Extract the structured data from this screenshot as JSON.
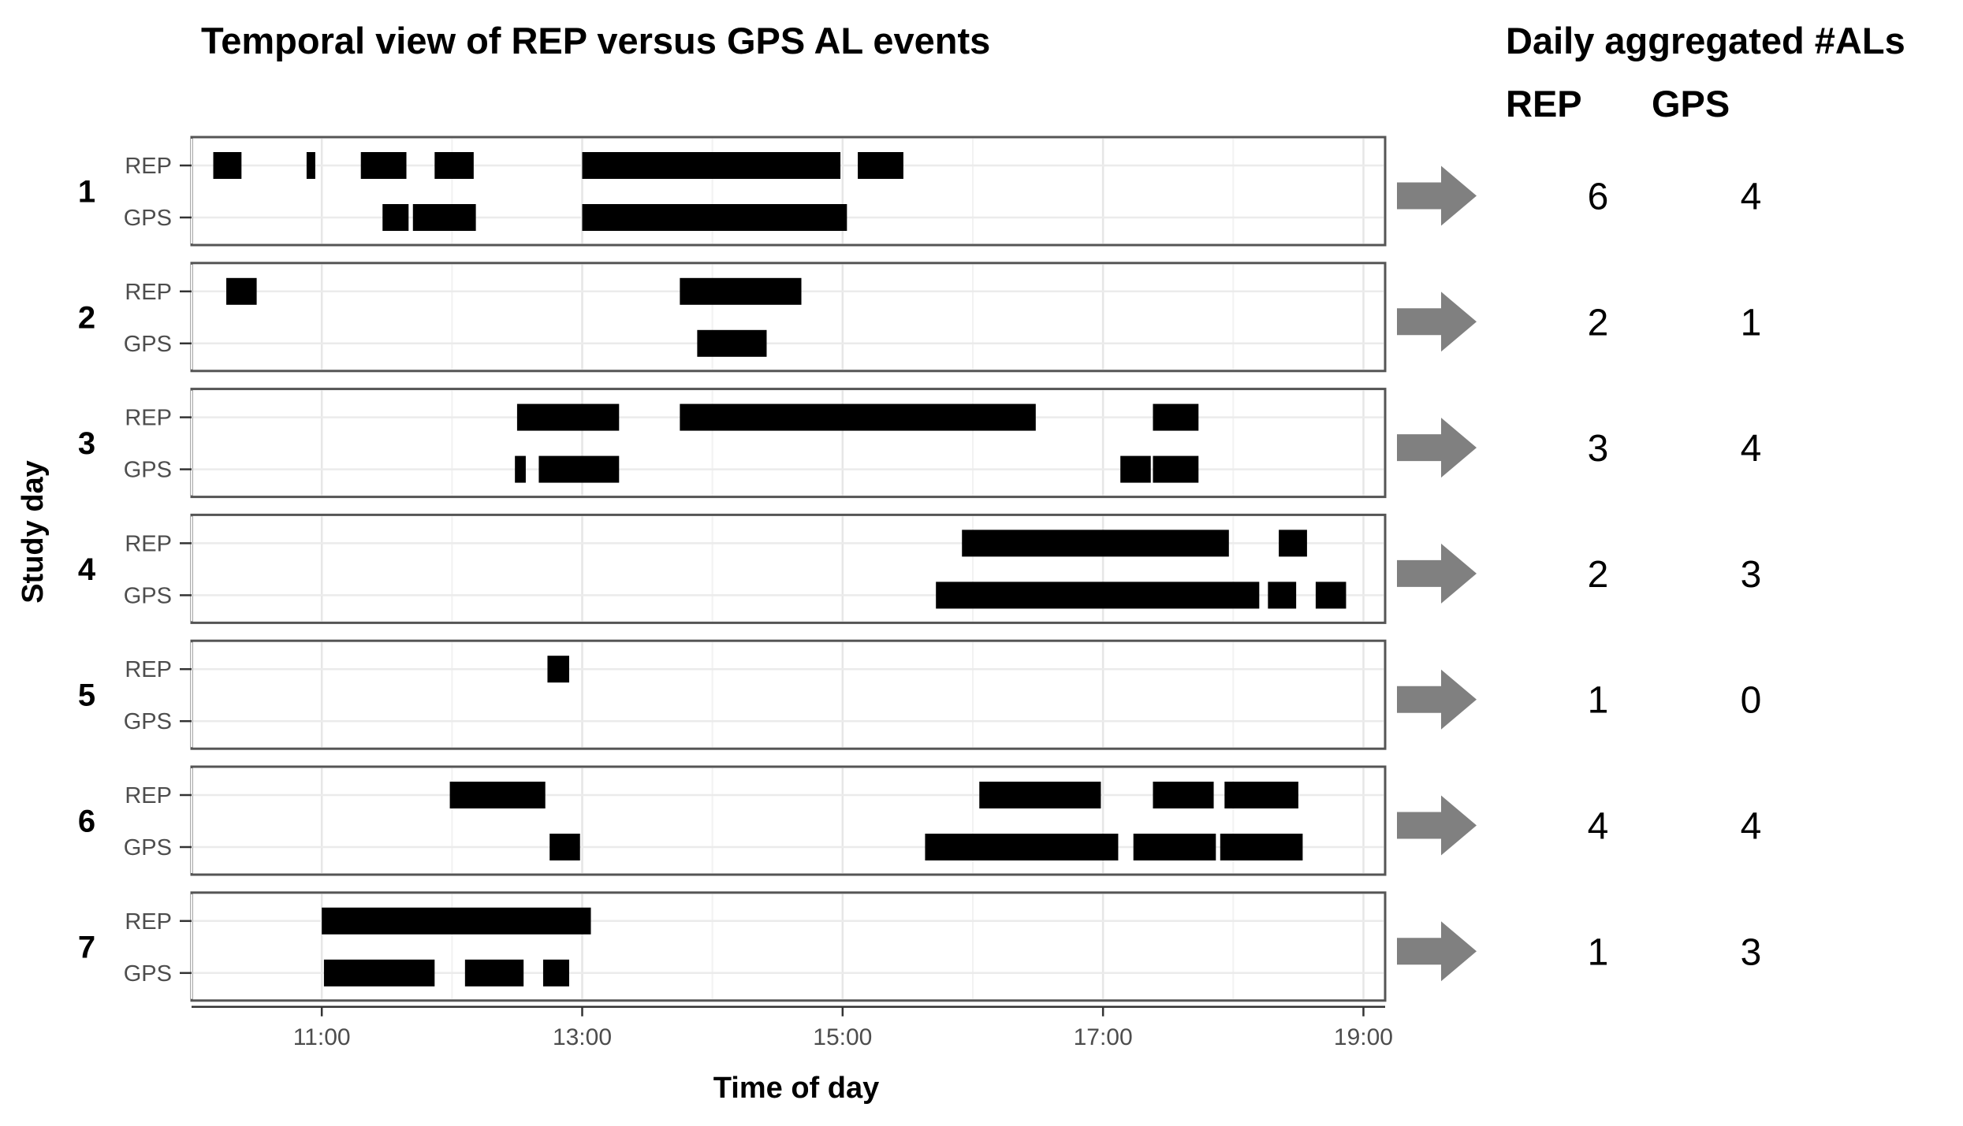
{
  "chart_data": {
    "type": "timeline",
    "title": "Temporal view of REP versus GPS AL events",
    "xlabel": "Time of day",
    "ylabel": "Study day",
    "xlim": [
      "10:00",
      "19:10"
    ],
    "x_ticks": [
      "11:00",
      "13:00",
      "15:00",
      "17:00",
      "19:00"
    ],
    "row_labels": [
      "REP",
      "GPS"
    ],
    "grid": true,
    "bar_color": "#000000",
    "panel_border_color": "#555555",
    "days": [
      {
        "label": "1",
        "REP": [
          [
            "10:10",
            "10:23"
          ],
          [
            "10:53",
            "10:57"
          ],
          [
            "11:18",
            "11:39"
          ],
          [
            "11:52",
            "12:10"
          ],
          [
            "13:00",
            "14:59"
          ],
          [
            "15:07",
            "15:28"
          ]
        ],
        "GPS": [
          [
            "11:28",
            "11:40"
          ],
          [
            "11:42",
            "11:53"
          ],
          [
            "11:52",
            "12:11"
          ],
          [
            "13:00",
            "15:02"
          ]
        ]
      },
      {
        "label": "2",
        "REP": [
          [
            "10:16",
            "10:30"
          ]
        ],
        "GPS": [
          [
            "13:53",
            "14:25"
          ]
        ],
        "REP_extra": [
          [
            "13:45",
            "14:41"
          ]
        ]
      },
      {
        "label": "3",
        "REP": [
          [
            "12:30",
            "13:17"
          ],
          [
            "13:45",
            "16:29"
          ],
          [
            "17:23",
            "17:44"
          ]
        ],
        "GPS": [
          [
            "12:29",
            "12:34"
          ],
          [
            "12:40",
            "13:17"
          ],
          [
            "17:08",
            "17:22"
          ],
          [
            "17:23",
            "17:44"
          ]
        ]
      },
      {
        "label": "4",
        "REP": [
          [
            "15:55",
            "17:58"
          ],
          [
            "18:21",
            "18:34"
          ]
        ],
        "GPS": [
          [
            "15:43",
            "18:12"
          ],
          [
            "18:16",
            "18:29"
          ],
          [
            "18:38",
            "18:52"
          ]
        ]
      },
      {
        "label": "5",
        "REP": [
          [
            "12:44",
            "12:54"
          ]
        ],
        "GPS": []
      },
      {
        "label": "6",
        "REP": [
          [
            "11:59",
            "12:43"
          ],
          [
            "16:03",
            "16:59"
          ],
          [
            "17:23",
            "17:51"
          ],
          [
            "17:56",
            "18:30"
          ]
        ],
        "GPS": [
          [
            "12:45",
            "12:59"
          ],
          [
            "15:38",
            "17:07"
          ],
          [
            "17:14",
            "17:52"
          ],
          [
            "17:54",
            "18:32"
          ]
        ]
      },
      {
        "label": "7",
        "REP": [
          [
            "11:00",
            "13:04"
          ]
        ],
        "GPS": [
          [
            "11:01",
            "11:52"
          ],
          [
            "12:06",
            "12:33"
          ],
          [
            "12:42",
            "12:54"
          ]
        ]
      }
    ]
  },
  "aggregate": {
    "title": "Daily aggregated #ALs",
    "col_rep": "REP",
    "col_gps": "GPS",
    "arrow_color": "#808080",
    "rows": [
      {
        "rep": "6",
        "gps": "4"
      },
      {
        "rep": "2",
        "gps": "1"
      },
      {
        "rep": "3",
        "gps": "4"
      },
      {
        "rep": "2",
        "gps": "3"
      },
      {
        "rep": "1",
        "gps": "0"
      },
      {
        "rep": "4",
        "gps": "4"
      },
      {
        "rep": "1",
        "gps": "3"
      }
    ]
  }
}
